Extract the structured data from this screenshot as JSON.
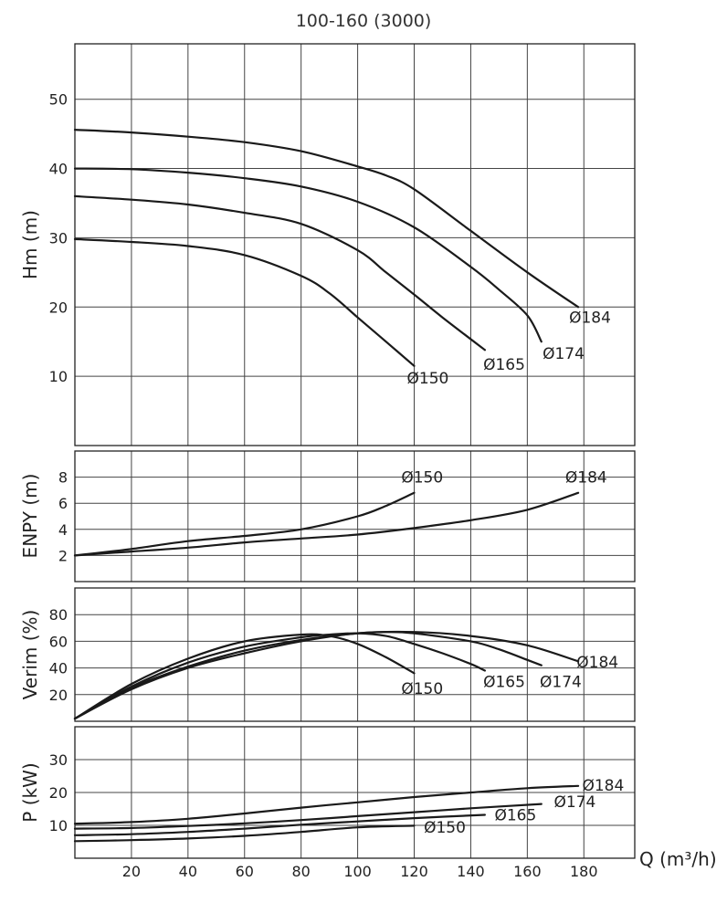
{
  "title": "100-160 (3000)",
  "x_axis": {
    "label": "Q (m³/h)",
    "ticks": [
      "20",
      "40",
      "60",
      "80",
      "100",
      "120",
      "140",
      "160",
      "180"
    ]
  },
  "chart_data": [
    {
      "type": "line",
      "ylabel": "Hm (m)",
      "xlim": [
        0,
        198
      ],
      "ylim": [
        0,
        58
      ],
      "yticks": [
        10,
        20,
        30,
        40,
        50
      ],
      "grid": true,
      "series": [
        {
          "name": "Ø150",
          "x": [
            0,
            20,
            40,
            60,
            80,
            90,
            100,
            110,
            120
          ],
          "y": [
            29.8,
            29.4,
            28.8,
            27.5,
            24.5,
            22.0,
            18.5,
            15.0,
            11.5
          ]
        },
        {
          "name": "Ø165",
          "x": [
            0,
            20,
            40,
            60,
            80,
            100,
            110,
            120,
            130,
            145
          ],
          "y": [
            36.0,
            35.5,
            34.8,
            33.6,
            32.0,
            28.2,
            25.0,
            21.8,
            18.5,
            13.8
          ]
        },
        {
          "name": "Ø174",
          "x": [
            0,
            20,
            40,
            60,
            80,
            100,
            120,
            140,
            150,
            160,
            165
          ],
          "y": [
            40.0,
            39.9,
            39.4,
            38.6,
            37.4,
            35.2,
            31.5,
            25.8,
            22.5,
            18.8,
            15.0
          ]
        },
        {
          "name": "Ø184",
          "x": [
            0,
            20,
            40,
            60,
            80,
            100,
            110,
            120,
            140,
            160,
            178
          ],
          "y": [
            45.6,
            45.2,
            44.6,
            43.8,
            42.5,
            40.3,
            39.0,
            37.0,
            31.0,
            25.0,
            20.0
          ]
        }
      ],
      "annotations": [
        "Ø150",
        "Ø165",
        "Ø174",
        "Ø184"
      ]
    },
    {
      "type": "line",
      "ylabel": "ENPY (m)",
      "xlim": [
        0,
        198
      ],
      "ylim": [
        0,
        10
      ],
      "yticks": [
        2,
        4,
        6,
        8
      ],
      "grid": true,
      "series": [
        {
          "name": "Ø150",
          "x": [
            0,
            20,
            40,
            60,
            80,
            100,
            110,
            120
          ],
          "y": [
            2.0,
            2.5,
            3.1,
            3.5,
            4.0,
            5.0,
            5.8,
            6.8
          ]
        },
        {
          "name": "Ø184",
          "x": [
            0,
            20,
            40,
            60,
            80,
            100,
            120,
            140,
            160,
            178
          ],
          "y": [
            2.0,
            2.3,
            2.6,
            3.0,
            3.3,
            3.6,
            4.1,
            4.7,
            5.5,
            6.8
          ]
        }
      ],
      "annotations": [
        "Ø150",
        "Ø184"
      ]
    },
    {
      "type": "line",
      "ylabel": "Verim (%)",
      "xlim": [
        0,
        198
      ],
      "ylim": [
        0,
        100
      ],
      "yticks": [
        20,
        40,
        60,
        80
      ],
      "grid": true,
      "series": [
        {
          "name": "Ø150",
          "x": [
            0,
            20,
            40,
            60,
            80,
            90,
            100,
            110,
            120
          ],
          "y": [
            2,
            28,
            47,
            60,
            65,
            64,
            58,
            48,
            36
          ]
        },
        {
          "name": "Ø165",
          "x": [
            0,
            20,
            40,
            60,
            80,
            90,
            100,
            110,
            120,
            130,
            140,
            145
          ],
          "y": [
            2,
            26,
            44,
            56,
            63,
            65,
            66,
            64,
            58,
            51,
            43,
            38
          ]
        },
        {
          "name": "Ø174",
          "x": [
            0,
            20,
            40,
            60,
            80,
            100,
            110,
            120,
            140,
            150,
            160,
            165
          ],
          "y": [
            2,
            25,
            41,
            53,
            61,
            66,
            67,
            66,
            60,
            54,
            46,
            42
          ]
        },
        {
          "name": "Ø184",
          "x": [
            0,
            20,
            40,
            60,
            80,
            100,
            120,
            140,
            160,
            178
          ],
          "y": [
            2,
            24,
            40,
            51,
            60,
            66,
            67,
            64,
            57,
            45
          ]
        }
      ],
      "annotations": [
        "Ø150",
        "Ø165",
        "Ø174",
        "Ø184"
      ]
    },
    {
      "type": "line",
      "ylabel": "P (kW)",
      "xlim": [
        0,
        198
      ],
      "ylim": [
        0,
        40
      ],
      "yticks": [
        10,
        20,
        30
      ],
      "grid": true,
      "series": [
        {
          "name": "Ø150",
          "x": [
            0,
            20,
            40,
            60,
            80,
            100,
            120
          ],
          "y": [
            5.2,
            5.5,
            6.0,
            6.8,
            8.0,
            9.4,
            9.9
          ]
        },
        {
          "name": "Ø165",
          "x": [
            0,
            20,
            40,
            60,
            80,
            100,
            120,
            145
          ],
          "y": [
            7.0,
            7.3,
            8.0,
            9.0,
            10.2,
            11.2,
            12.2,
            13.2
          ]
        },
        {
          "name": "Ø174",
          "x": [
            0,
            20,
            40,
            60,
            80,
            100,
            120,
            140,
            165
          ],
          "y": [
            9.0,
            9.2,
            9.8,
            10.6,
            11.6,
            12.8,
            14.0,
            15.2,
            16.5
          ]
        },
        {
          "name": "Ø184",
          "x": [
            0,
            20,
            40,
            60,
            80,
            100,
            120,
            140,
            160,
            178
          ],
          "y": [
            10.5,
            11.0,
            12.0,
            13.6,
            15.4,
            17.0,
            18.6,
            20.0,
            21.3,
            22.0
          ]
        }
      ],
      "annotations": [
        "Ø150",
        "Ø165",
        "Ø174",
        "Ø184"
      ]
    }
  ]
}
